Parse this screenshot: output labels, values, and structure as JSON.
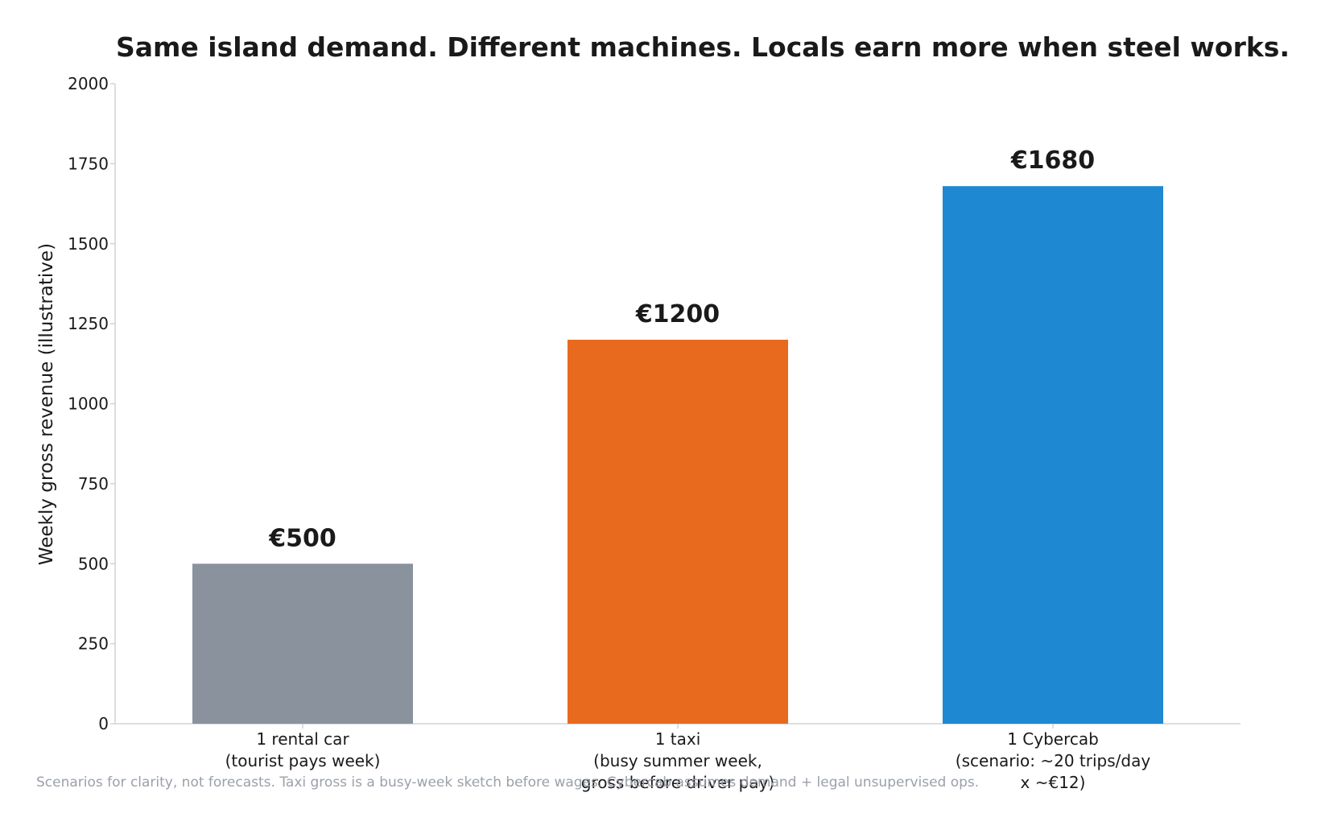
{
  "chart_data": {
    "type": "bar",
    "title": "Same island demand. Different machines. Locals earn more when steel works.",
    "xlabel": "",
    "ylabel": "Weekly gross revenue (illustrative)",
    "ylim": [
      0,
      2000
    ],
    "yticks": [
      0,
      250,
      500,
      750,
      1000,
      1250,
      1500,
      1750,
      2000
    ],
    "categories": [
      [
        "1 rental car",
        "(tourist pays week)"
      ],
      [
        "1 taxi",
        "(busy summer week,",
        "gross before driver pay)"
      ],
      [
        "1 Cybercab",
        "(scenario: ~20 trips/day",
        "x ~€12)"
      ]
    ],
    "values": [
      500,
      1200,
      1680
    ],
    "data_labels": [
      "€500",
      "€1200",
      "€1680"
    ],
    "colors": [
      "#8a929e",
      "#e86a1e",
      "#1e88d2"
    ],
    "grid": false,
    "legend": "none",
    "footnote": "Scenarios for clarity, not forecasts. Taxi gross is a busy-week sketch before wages. Cybercab assumes demand + legal unsupervised ops."
  }
}
